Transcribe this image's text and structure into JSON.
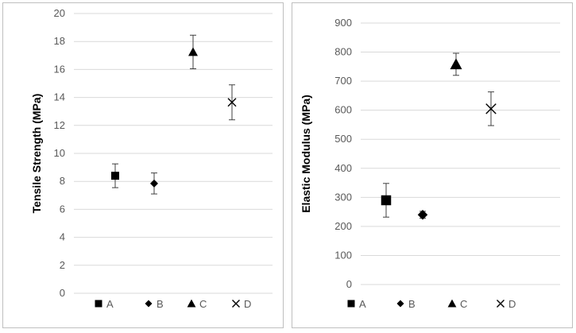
{
  "chart_data": [
    {
      "type": "scatter",
      "title": "",
      "xlabel": "",
      "ylabel": "Tensile Strength (MPa)",
      "ylim": [
        0,
        20
      ],
      "yticks": [
        0,
        2,
        4,
        6,
        8,
        10,
        12,
        14,
        16,
        18,
        20
      ],
      "grid": "horizontal",
      "legend": "bottom",
      "error_bars": true,
      "series": [
        {
          "name": "A",
          "marker": "square",
          "values": [
            8.4
          ],
          "error": [
            0.85
          ]
        },
        {
          "name": "B",
          "marker": "diamond",
          "values": [
            7.85
          ],
          "error": [
            0.75
          ]
        },
        {
          "name": "C",
          "marker": "triangle",
          "values": [
            17.25
          ],
          "error": [
            1.2
          ]
        },
        {
          "name": "D",
          "marker": "x",
          "values": [
            13.65
          ],
          "error": [
            1.25
          ]
        }
      ]
    },
    {
      "type": "scatter",
      "title": "",
      "xlabel": "",
      "ylabel": "Elastic Modulus (MPa)",
      "ylim": [
        0,
        900
      ],
      "yticks": [
        0,
        100,
        200,
        300,
        400,
        500,
        600,
        700,
        800,
        900
      ],
      "grid": "horizontal",
      "legend": "bottom",
      "error_bars": true,
      "series": [
        {
          "name": "A",
          "marker": "square",
          "values": [
            290
          ],
          "error": [
            58
          ]
        },
        {
          "name": "B",
          "marker": "diamond",
          "values": [
            240
          ],
          "error": [
            12
          ]
        },
        {
          "name": "C",
          "marker": "triangle",
          "values": [
            758
          ],
          "error": [
            38
          ]
        },
        {
          "name": "D",
          "marker": "x",
          "values": [
            605
          ],
          "error": [
            58
          ]
        }
      ]
    }
  ]
}
